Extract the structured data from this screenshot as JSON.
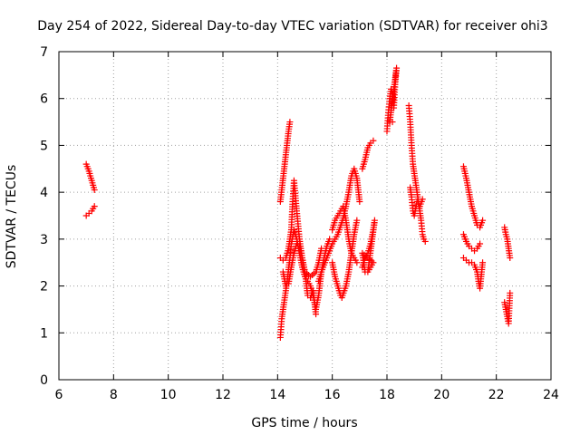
{
  "chart_data": {
    "type": "scatter",
    "title": "Day 254 of 2022, Sidereal Day-to-day VTEC variation (SDTVAR) for receiver ohi3",
    "xlabel": "GPS time / hours",
    "ylabel": "SDTVAR / TECUs",
    "xlim": [
      6,
      24
    ],
    "ylim": [
      0,
      7
    ],
    "xticks": [
      "6",
      "8",
      "10",
      "12",
      "14",
      "16",
      "18",
      "20",
      "22",
      "24"
    ],
    "yticks": [
      "0",
      "1",
      "2",
      "3",
      "4",
      "5",
      "6",
      "7"
    ],
    "grid": true,
    "marker": "+",
    "marker_color": "#ff0000",
    "segments": [
      [
        [
          7.0,
          4.6
        ],
        [
          7.1,
          4.45
        ],
        [
          7.2,
          4.25
        ],
        [
          7.3,
          4.05
        ]
      ],
      [
        [
          7.0,
          3.5
        ],
        [
          7.1,
          3.55
        ],
        [
          7.2,
          3.6
        ],
        [
          7.3,
          3.7
        ]
      ],
      [
        [
          14.1,
          3.8
        ],
        [
          14.2,
          4.3
        ],
        [
          14.3,
          4.8
        ],
        [
          14.4,
          5.3
        ],
        [
          14.45,
          5.5
        ]
      ],
      [
        [
          14.1,
          0.9
        ],
        [
          14.15,
          1.3
        ],
        [
          14.25,
          1.7
        ],
        [
          14.35,
          2.1
        ],
        [
          14.45,
          2.6
        ],
        [
          14.5,
          2.9
        ],
        [
          14.6,
          3.2
        ],
        [
          14.7,
          3.0
        ],
        [
          14.8,
          2.7
        ],
        [
          14.9,
          2.4
        ],
        [
          15.0,
          2.2
        ],
        [
          15.1,
          2.1
        ],
        [
          15.2,
          2.0
        ],
        [
          15.3,
          1.8
        ],
        [
          15.4,
          1.5
        ],
        [
          15.5,
          1.8
        ],
        [
          15.6,
          2.3
        ],
        [
          15.7,
          2.6
        ],
        [
          15.8,
          2.85
        ],
        [
          15.9,
          3.0
        ]
      ],
      [
        [
          14.1,
          2.6
        ],
        [
          14.2,
          2.55
        ],
        [
          14.3,
          2.6
        ],
        [
          14.4,
          2.8
        ],
        [
          14.5,
          3.2
        ],
        [
          14.55,
          3.8
        ],
        [
          14.6,
          4.25
        ],
        [
          14.7,
          3.6
        ],
        [
          14.8,
          3.0
        ],
        [
          14.9,
          2.6
        ],
        [
          15.0,
          2.3
        ],
        [
          15.2,
          2.2
        ],
        [
          15.4,
          2.3
        ],
        [
          15.5,
          2.5
        ],
        [
          15.6,
          2.8
        ]
      ],
      [
        [
          14.2,
          2.3
        ],
        [
          14.3,
          2.0
        ],
        [
          14.4,
          2.05
        ],
        [
          14.5,
          2.4
        ],
        [
          14.6,
          2.7
        ],
        [
          14.7,
          2.9
        ],
        [
          14.8,
          2.85
        ],
        [
          14.9,
          2.6
        ],
        [
          15.0,
          2.3
        ],
        [
          15.1,
          1.8
        ],
        [
          15.2,
          1.75
        ],
        [
          15.3,
          1.9
        ],
        [
          15.4,
          1.4
        ]
      ],
      [
        [
          15.5,
          2.1
        ],
        [
          15.6,
          2.3
        ],
        [
          15.8,
          2.6
        ],
        [
          16.0,
          2.9
        ],
        [
          16.2,
          3.1
        ],
        [
          16.4,
          3.45
        ],
        [
          16.5,
          3.7
        ],
        [
          16.6,
          4.0
        ],
        [
          16.7,
          4.35
        ],
        [
          16.8,
          4.5
        ],
        [
          16.9,
          4.3
        ],
        [
          17.0,
          3.8
        ]
      ],
      [
        [
          16.0,
          2.5
        ],
        [
          16.1,
          2.2
        ],
        [
          16.2,
          2.0
        ],
        [
          16.3,
          1.8
        ],
        [
          16.35,
          1.75
        ],
        [
          16.5,
          2.0
        ],
        [
          16.6,
          2.3
        ],
        [
          16.7,
          2.7
        ],
        [
          16.8,
          3.1
        ],
        [
          16.9,
          3.4
        ]
      ],
      [
        [
          16.0,
          3.2
        ],
        [
          16.1,
          3.4
        ],
        [
          16.2,
          3.5
        ],
        [
          16.3,
          3.6
        ],
        [
          16.4,
          3.7
        ],
        [
          16.5,
          3.4
        ],
        [
          16.6,
          3.0
        ],
        [
          16.7,
          2.7
        ],
        [
          16.8,
          2.6
        ],
        [
          16.9,
          2.5
        ]
      ],
      [
        [
          17.1,
          2.4
        ],
        [
          17.2,
          2.6
        ],
        [
          17.3,
          2.7
        ],
        [
          17.4,
          2.9
        ],
        [
          17.5,
          3.2
        ],
        [
          17.55,
          3.4
        ],
        [
          17.3,
          2.3
        ],
        [
          17.5,
          2.5
        ],
        [
          17.1,
          2.7
        ],
        [
          17.2,
          2.3
        ]
      ],
      [
        [
          17.1,
          4.5
        ],
        [
          17.2,
          4.7
        ],
        [
          17.3,
          4.95
        ],
        [
          17.4,
          5.05
        ],
        [
          17.5,
          5.1
        ]
      ],
      [
        [
          18.0,
          5.3
        ],
        [
          18.05,
          5.7
        ],
        [
          18.1,
          6.0
        ],
        [
          18.15,
          6.2
        ],
        [
          18.2,
          6.1
        ],
        [
          18.25,
          5.8
        ],
        [
          18.3,
          6.3
        ],
        [
          18.35,
          6.65
        ],
        [
          18.1,
          5.5
        ],
        [
          18.2,
          5.5
        ]
      ],
      [
        [
          18.8,
          5.85
        ],
        [
          18.85,
          5.5
        ],
        [
          18.9,
          5.0
        ],
        [
          18.95,
          4.6
        ],
        [
          19.0,
          4.4
        ],
        [
          19.05,
          4.2
        ],
        [
          19.1,
          4.0
        ],
        [
          19.15,
          3.8
        ],
        [
          19.2,
          3.6
        ],
        [
          19.25,
          3.4
        ],
        [
          19.3,
          3.1
        ],
        [
          19.35,
          3.0
        ],
        [
          19.4,
          2.95
        ]
      ],
      [
        [
          18.85,
          4.1
        ],
        [
          18.9,
          3.9
        ],
        [
          18.95,
          3.6
        ],
        [
          19.0,
          3.5
        ],
        [
          19.1,
          3.8
        ],
        [
          19.2,
          3.7
        ],
        [
          19.3,
          3.85
        ]
      ],
      [
        [
          20.8,
          4.55
        ],
        [
          20.9,
          4.3
        ],
        [
          21.0,
          4.0
        ],
        [
          21.1,
          3.7
        ],
        [
          21.2,
          3.5
        ],
        [
          21.3,
          3.3
        ],
        [
          21.4,
          3.25
        ],
        [
          21.5,
          3.4
        ]
      ],
      [
        [
          20.8,
          3.1
        ],
        [
          20.9,
          2.95
        ],
        [
          21.0,
          2.85
        ],
        [
          21.1,
          2.8
        ],
        [
          21.2,
          2.75
        ],
        [
          21.3,
          2.8
        ],
        [
          21.4,
          2.9
        ]
      ],
      [
        [
          20.8,
          2.6
        ],
        [
          20.9,
          2.55
        ],
        [
          21.0,
          2.5
        ],
        [
          21.1,
          2.5
        ],
        [
          21.2,
          2.45
        ],
        [
          21.3,
          2.3
        ],
        [
          21.35,
          2.1
        ],
        [
          21.4,
          1.95
        ],
        [
          21.5,
          2.5
        ]
      ],
      [
        [
          22.3,
          3.25
        ],
        [
          22.35,
          3.1
        ],
        [
          22.4,
          3.0
        ],
        [
          22.45,
          2.8
        ],
        [
          22.5,
          2.6
        ]
      ],
      [
        [
          22.3,
          1.65
        ],
        [
          22.35,
          1.5
        ],
        [
          22.4,
          1.35
        ],
        [
          22.45,
          1.2
        ],
        [
          22.5,
          1.85
        ]
      ]
    ]
  }
}
